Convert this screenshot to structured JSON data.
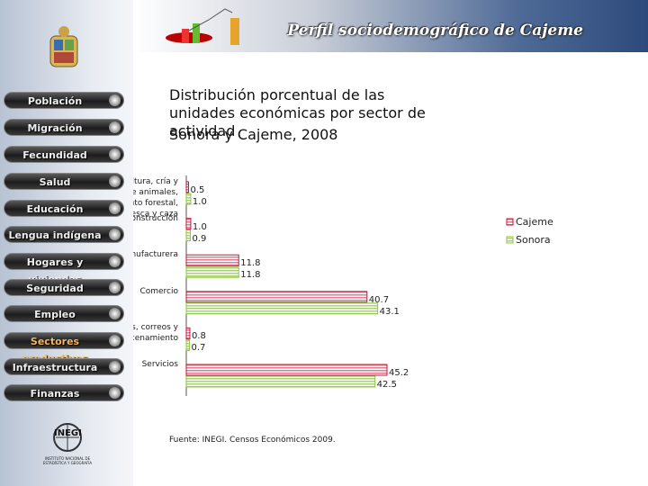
{
  "header": {
    "title": "Perfil sociodemográfico de Cajeme"
  },
  "menu": [
    "Población",
    "Migración",
    "Fecundidad",
    "Salud",
    "Educación",
    "Lengua indígena",
    "Hogares y viviendas",
    "Seguridad",
    "Empleo",
    "Sectores productivos",
    "Infraestructura",
    "Finanzas"
  ],
  "logo": {
    "name": "INEGI",
    "subtitle": "INSTITUTO NACIONAL DE ESTADÍSTICA Y GEOGRAFÍA"
  },
  "chart_data": {
    "type": "bar",
    "title": "Distribución porcentual de las unidades económicas por sector de actividad",
    "subtitle": "Sonora y Cajeme, 2008",
    "categories": [
      "Agricultura, cría y explotación de animales, aprovechamiento forestal, pesca y caza",
      "Construcción",
      "Industria manufacturera",
      "Comercio",
      "Transportes, correos y almacenamiento",
      "Servicios"
    ],
    "series": [
      {
        "name": "Cajeme",
        "color": "#c0143c",
        "values": [
          0.5,
          1.0,
          11.8,
          40.7,
          0.8,
          45.2
        ],
        "value_labels": [
          "0.5",
          "1.0",
          "11.8",
          "40.7",
          "0.8",
          "45.2"
        ]
      },
      {
        "name": "Sonora",
        "color": "#8cc63f",
        "values": [
          1.0,
          0.9,
          11.8,
          43.1,
          0.7,
          42.5
        ],
        "value_labels": [
          "1.0",
          "0.9",
          "11.8",
          "43.1",
          "0.7",
          "42.5"
        ]
      }
    ],
    "legend": "right",
    "source": "Fuente: INEGI. Censos Económicos 2009."
  }
}
